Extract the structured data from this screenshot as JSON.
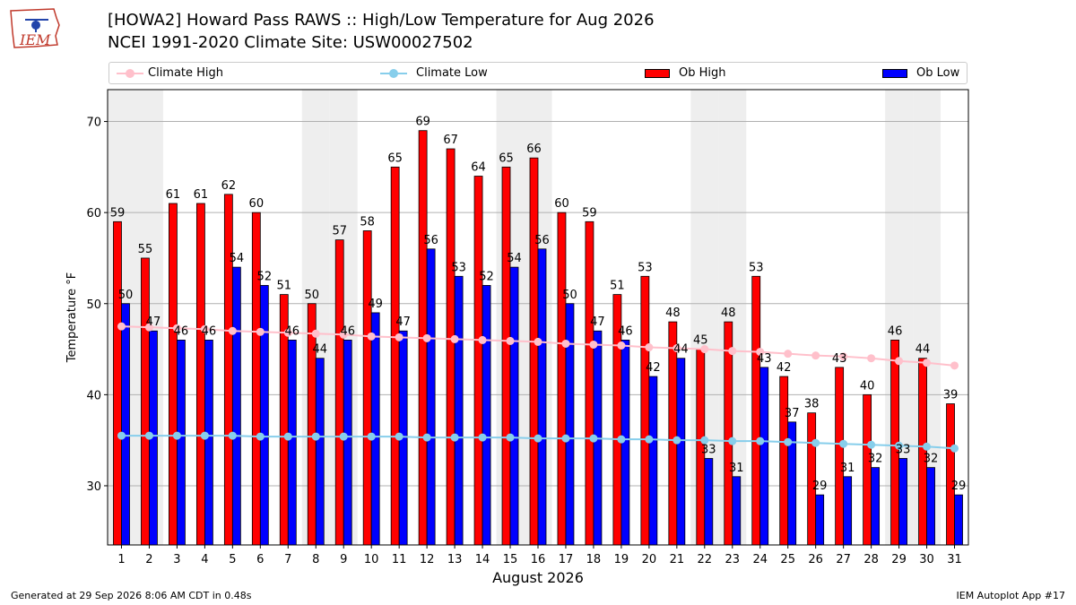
{
  "header": {
    "logo_text": "IEM",
    "title_line1": "[HOWA2] Howard Pass RAWS :: High/Low Temperature for Aug 2026",
    "title_line2": "NCEI 1991-2020 Climate Site: USW00027502"
  },
  "legend": {
    "climate_high": "Climate High",
    "climate_low": "Climate Low",
    "ob_high": "Ob High",
    "ob_low": "Ob Low"
  },
  "colors": {
    "ob_high": "#ff0000",
    "ob_low": "#0000ff",
    "climate_high": "#ffc0cb",
    "climate_low": "#87ceeb",
    "weekend_band": "#eeeeee",
    "grid": "#b0b0b0"
  },
  "chart_data": {
    "type": "bar",
    "xlabel": "August 2026",
    "ylabel": "Temperature °F",
    "ylim": [
      23.5,
      73.5
    ],
    "yticks": [
      30,
      40,
      50,
      60,
      70
    ],
    "grid": "horizontal",
    "legend_position": "top",
    "weekend_bands": [
      1,
      2,
      8,
      9,
      15,
      16,
      22,
      23,
      29,
      30
    ],
    "categories": [
      1,
      2,
      3,
      4,
      5,
      6,
      7,
      8,
      9,
      10,
      11,
      12,
      13,
      14,
      15,
      16,
      17,
      18,
      19,
      20,
      21,
      22,
      23,
      24,
      25,
      26,
      27,
      28,
      29,
      30,
      31
    ],
    "series": [
      {
        "name": "Ob High",
        "type": "bar",
        "values": [
          59,
          55,
          61,
          61,
          62,
          60,
          51,
          50,
          57,
          58,
          65,
          69,
          67,
          64,
          65,
          66,
          60,
          59,
          51,
          53,
          48,
          45,
          48,
          53,
          42,
          38,
          43,
          40,
          46,
          44,
          39
        ]
      },
      {
        "name": "Ob Low",
        "type": "bar",
        "values": [
          50,
          47,
          46,
          46,
          54,
          52,
          46,
          44,
          46,
          49,
          47,
          56,
          53,
          52,
          54,
          56,
          50,
          47,
          46,
          42,
          44,
          33,
          31,
          43,
          37,
          29,
          31,
          32,
          33,
          32,
          29
        ]
      },
      {
        "name": "Climate High",
        "type": "line",
        "values": [
          47.5,
          47.4,
          47.3,
          47.2,
          47.0,
          46.9,
          46.8,
          46.7,
          46.6,
          46.4,
          46.3,
          46.2,
          46.1,
          46.0,
          45.9,
          45.8,
          45.6,
          45.5,
          45.4,
          45.2,
          45.1,
          45.0,
          44.8,
          44.7,
          44.5,
          44.3,
          44.2,
          44.0,
          43.7,
          43.5,
          43.2
        ]
      },
      {
        "name": "Climate Low",
        "type": "line",
        "values": [
          35.5,
          35.5,
          35.5,
          35.5,
          35.5,
          35.4,
          35.4,
          35.4,
          35.4,
          35.4,
          35.4,
          35.3,
          35.3,
          35.3,
          35.3,
          35.2,
          35.2,
          35.2,
          35.1,
          35.1,
          35.0,
          35.0,
          34.9,
          34.9,
          34.8,
          34.7,
          34.6,
          34.5,
          34.4,
          34.3,
          34.1
        ]
      }
    ]
  },
  "footer": {
    "generated": "Generated at 29 Sep 2026 8:06 AM CDT in 0.48s",
    "app": "IEM Autoplot App #17"
  }
}
